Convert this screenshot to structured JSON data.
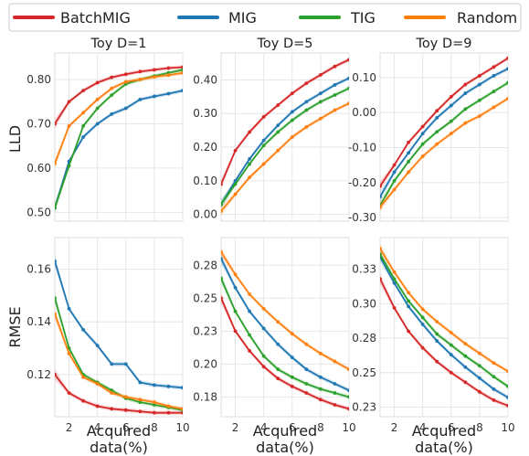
{
  "legend": [
    {
      "name": "BatchMIG",
      "color": "#d62728"
    },
    {
      "name": "MIG",
      "color": "#1f77b4"
    },
    {
      "name": "TIG",
      "color": "#2ca02c"
    },
    {
      "name": "Random",
      "color": "#ff7f0e"
    }
  ],
  "row_labels": [
    "LLD",
    "RMSE"
  ],
  "xlabel": [
    "Acquired",
    "data(%)"
  ],
  "chart_data": [
    {
      "type": "line",
      "title": "Toy D=1",
      "ylabel": "LLD",
      "x": [
        1,
        2,
        3,
        4,
        5,
        6,
        7,
        8,
        9,
        10
      ],
      "xticks": [
        2,
        4,
        6,
        8,
        10
      ],
      "xlim": [
        1,
        10
      ],
      "ylim": [
        0.48,
        0.86
      ],
      "yticks": [
        0.5,
        0.6,
        0.7,
        0.8
      ],
      "ytick_labels": [
        "0.50",
        "0.60",
        "0.70",
        "0.80"
      ],
      "series": [
        {
          "name": "BatchMIG",
          "color": "#d62728",
          "values": [
            0.7,
            0.75,
            0.775,
            0.793,
            0.805,
            0.812,
            0.818,
            0.822,
            0.826,
            0.828
          ]
        },
        {
          "name": "MIG",
          "color": "#1f77b4",
          "values": [
            0.51,
            0.615,
            0.67,
            0.7,
            0.722,
            0.735,
            0.755,
            0.762,
            0.768,
            0.775
          ]
        },
        {
          "name": "TIG",
          "color": "#2ca02c",
          "values": [
            0.51,
            0.605,
            0.695,
            0.735,
            0.765,
            0.79,
            0.8,
            0.808,
            0.815,
            0.822
          ]
        },
        {
          "name": "Random",
          "color": "#ff7f0e",
          "values": [
            0.61,
            0.695,
            0.725,
            0.755,
            0.78,
            0.795,
            0.8,
            0.806,
            0.81,
            0.815
          ]
        }
      ]
    },
    {
      "type": "line",
      "title": "Toy D=5",
      "x": [
        1,
        2,
        3,
        4,
        5,
        6,
        7,
        8,
        9,
        10
      ],
      "xticks": [
        2,
        4,
        6,
        8,
        10
      ],
      "xlim": [
        1,
        10
      ],
      "ylim": [
        -0.02,
        0.48
      ],
      "yticks": [
        0.0,
        0.1,
        0.2,
        0.3,
        0.4
      ],
      "ytick_labels": [
        "0.00",
        "0.10",
        "0.20",
        "0.30",
        "0.40"
      ],
      "series": [
        {
          "name": "BatchMIG",
          "color": "#d62728",
          "values": [
            0.09,
            0.19,
            0.245,
            0.29,
            0.325,
            0.36,
            0.39,
            0.415,
            0.44,
            0.46
          ]
        },
        {
          "name": "MIG",
          "color": "#1f77b4",
          "values": [
            0.03,
            0.1,
            0.165,
            0.22,
            0.265,
            0.305,
            0.335,
            0.36,
            0.385,
            0.405
          ]
        },
        {
          "name": "TIG",
          "color": "#2ca02c",
          "values": [
            0.03,
            0.09,
            0.15,
            0.205,
            0.245,
            0.28,
            0.31,
            0.335,
            0.355,
            0.375
          ]
        },
        {
          "name": "Random",
          "color": "#ff7f0e",
          "values": [
            0.01,
            0.06,
            0.11,
            0.15,
            0.19,
            0.23,
            0.26,
            0.285,
            0.31,
            0.33
          ]
        }
      ]
    },
    {
      "type": "line",
      "title": "Toy D=9",
      "x": [
        1,
        2,
        3,
        4,
        5,
        6,
        7,
        8,
        9,
        10
      ],
      "xticks": [
        2,
        4,
        6,
        8,
        10
      ],
      "xlim": [
        1,
        10
      ],
      "ylim": [
        -0.31,
        0.17
      ],
      "yticks": [
        -0.3,
        -0.2,
        -0.1,
        0.0,
        0.1
      ],
      "ytick_labels": [
        "-0.30",
        "-0.20",
        "-0.10",
        "0.00",
        "0.10"
      ],
      "series": [
        {
          "name": "BatchMIG",
          "color": "#d62728",
          "values": [
            -0.21,
            -0.15,
            -0.085,
            -0.04,
            0.005,
            0.045,
            0.08,
            0.105,
            0.13,
            0.155
          ]
        },
        {
          "name": "MIG",
          "color": "#1f77b4",
          "values": [
            -0.24,
            -0.17,
            -0.115,
            -0.06,
            -0.015,
            0.02,
            0.055,
            0.08,
            0.105,
            0.125
          ]
        },
        {
          "name": "TIG",
          "color": "#2ca02c",
          "values": [
            -0.265,
            -0.195,
            -0.14,
            -0.09,
            -0.055,
            -0.025,
            0.01,
            0.035,
            0.06,
            0.085
          ]
        },
        {
          "name": "Random",
          "color": "#ff7f0e",
          "values": [
            -0.27,
            -0.22,
            -0.17,
            -0.125,
            -0.09,
            -0.06,
            -0.03,
            -0.01,
            0.015,
            0.04
          ]
        }
      ]
    },
    {
      "type": "line",
      "title": "",
      "ylabel": "RMSE",
      "x": [
        1,
        2,
        3,
        4,
        5,
        6,
        7,
        8,
        9,
        10
      ],
      "xticks": [
        2,
        4,
        6,
        8,
        10
      ],
      "xlim": [
        1,
        10
      ],
      "ylim": [
        0.104,
        0.172
      ],
      "yticks": [
        0.12,
        0.14,
        0.16
      ],
      "ytick_labels": [
        "0.12",
        "0.14",
        "0.16"
      ],
      "series": [
        {
          "name": "BatchMIG",
          "color": "#d62728",
          "values": [
            0.12,
            0.113,
            0.11,
            0.108,
            0.107,
            0.1065,
            0.106,
            0.1055,
            0.1055,
            0.1055
          ]
        },
        {
          "name": "MIG",
          "color": "#1f77b4",
          "values": [
            0.163,
            0.145,
            0.137,
            0.131,
            0.124,
            0.124,
            0.117,
            0.116,
            0.1155,
            0.115
          ]
        },
        {
          "name": "TIG",
          "color": "#2ca02c",
          "values": [
            0.149,
            0.13,
            0.12,
            0.117,
            0.114,
            0.111,
            0.1095,
            0.1085,
            0.1075,
            0.1065
          ]
        },
        {
          "name": "Random",
          "color": "#ff7f0e",
          "values": [
            0.143,
            0.128,
            0.119,
            0.1165,
            0.113,
            0.1115,
            0.1105,
            0.1095,
            0.108,
            0.107
          ]
        }
      ]
    },
    {
      "type": "line",
      "title": "",
      "x": [
        1,
        2,
        3,
        4,
        5,
        6,
        7,
        8,
        9,
        10
      ],
      "xticks": [
        2,
        4,
        6,
        8,
        10
      ],
      "xlim": [
        1,
        10
      ],
      "ylim": [
        0.16,
        0.296
      ],
      "yticks": [
        0.175,
        0.2,
        0.225,
        0.25,
        0.275
      ],
      "ytick_labels": [
        "0.18",
        "0.20",
        "0.23",
        "0.25",
        "0.28"
      ],
      "series": [
        {
          "name": "BatchMIG",
          "color": "#d62728",
          "values": [
            0.25,
            0.225,
            0.21,
            0.198,
            0.189,
            0.183,
            0.178,
            0.173,
            0.169,
            0.166
          ]
        },
        {
          "name": "MIG",
          "color": "#1f77b4",
          "values": [
            0.28,
            0.258,
            0.24,
            0.227,
            0.215,
            0.205,
            0.196,
            0.19,
            0.185,
            0.18
          ]
        },
        {
          "name": "TIG",
          "color": "#2ca02c",
          "values": [
            0.265,
            0.24,
            0.222,
            0.206,
            0.196,
            0.19,
            0.185,
            0.181,
            0.178,
            0.175
          ]
        },
        {
          "name": "Random",
          "color": "#ff7f0e",
          "values": [
            0.285,
            0.268,
            0.253,
            0.242,
            0.232,
            0.223,
            0.215,
            0.208,
            0.202,
            0.196
          ]
        }
      ]
    },
    {
      "type": "line",
      "title": "",
      "x": [
        1,
        2,
        3,
        4,
        5,
        6,
        7,
        8,
        9,
        10
      ],
      "xticks": [
        2,
        4,
        6,
        8,
        10
      ],
      "xlim": [
        1,
        10
      ],
      "ylim": [
        0.218,
        0.348
      ],
      "yticks": [
        0.225,
        0.25,
        0.275,
        0.3,
        0.325
      ],
      "ytick_labels": [
        "0.23",
        "0.25",
        "0.28",
        "0.30",
        "0.33"
      ],
      "series": [
        {
          "name": "BatchMIG",
          "color": "#d62728",
          "values": [
            0.318,
            0.297,
            0.28,
            0.268,
            0.258,
            0.25,
            0.243,
            0.236,
            0.23,
            0.226
          ]
        },
        {
          "name": "MIG",
          "color": "#1f77b4",
          "values": [
            0.334,
            0.315,
            0.298,
            0.285,
            0.273,
            0.263,
            0.254,
            0.246,
            0.238,
            0.232
          ]
        },
        {
          "name": "TIG",
          "color": "#2ca02c",
          "values": [
            0.336,
            0.318,
            0.302,
            0.29,
            0.278,
            0.27,
            0.262,
            0.255,
            0.247,
            0.24
          ]
        },
        {
          "name": "Random",
          "color": "#ff7f0e",
          "values": [
            0.34,
            0.323,
            0.308,
            0.296,
            0.287,
            0.279,
            0.271,
            0.264,
            0.257,
            0.251
          ]
        }
      ]
    }
  ]
}
